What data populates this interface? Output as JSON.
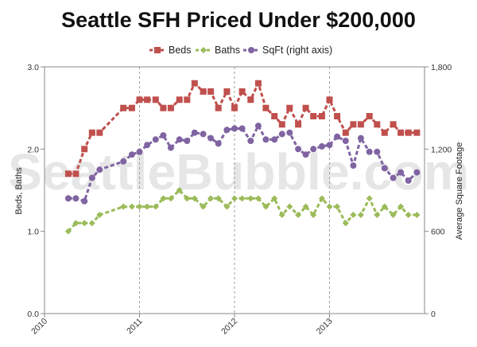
{
  "chart_data": {
    "type": "line",
    "title": "Seattle SFH Priced Under $200,000",
    "watermark": "SeattleBubble.com",
    "ylabel_left": "Beds, Baths",
    "ylabel_right": "Average Square Footage",
    "ylim_left": [
      0,
      3
    ],
    "ylim_right": [
      0,
      1800
    ],
    "yticks_left": [
      "0.0",
      "1.0",
      "2.0",
      "3.0"
    ],
    "yticks_right": [
      "0",
      "600",
      "1,200",
      "1,800"
    ],
    "xlim": [
      2010.0,
      2014.0
    ],
    "xticks": [
      {
        "value": 2010,
        "label": "2010"
      },
      {
        "value": 2011,
        "label": "2011"
      },
      {
        "value": 2012,
        "label": "2012"
      },
      {
        "value": 2013,
        "label": "2013"
      }
    ],
    "grid": "vertical dashed at year boundaries",
    "legend_position": "top",
    "dates": [
      2010.25,
      2010.33,
      2010.42,
      2010.5,
      2010.58,
      2010.83,
      2010.92,
      2011.0,
      2011.08,
      2011.17,
      2011.25,
      2011.33,
      2011.42,
      2011.5,
      2011.58,
      2011.67,
      2011.75,
      2011.83,
      2011.92,
      2012.0,
      2012.08,
      2012.17,
      2012.25,
      2012.33,
      2012.42,
      2012.5,
      2012.58,
      2012.67,
      2012.75,
      2012.83,
      2012.92,
      2013.0,
      2013.08,
      2013.17,
      2013.25,
      2013.33,
      2013.42,
      2013.5,
      2013.58,
      2013.67,
      2013.75,
      2013.83,
      2013.92
    ],
    "series": [
      {
        "name": "Beds",
        "axis": "left",
        "color": "#c0504d",
        "marker": "square",
        "values": [
          1.7,
          1.7,
          2.0,
          2.2,
          2.2,
          2.5,
          2.5,
          2.6,
          2.6,
          2.6,
          2.5,
          2.5,
          2.6,
          2.6,
          2.8,
          2.7,
          2.7,
          2.5,
          2.7,
          2.5,
          2.7,
          2.6,
          2.8,
          2.5,
          2.4,
          2.3,
          2.5,
          2.3,
          2.5,
          2.4,
          2.4,
          2.6,
          2.4,
          2.2,
          2.3,
          2.3,
          2.4,
          2.3,
          2.2,
          2.3,
          2.2,
          2.2,
          2.2
        ]
      },
      {
        "name": "Baths",
        "axis": "left",
        "color": "#9bbb59",
        "marker": "diamond",
        "values": [
          1.0,
          1.1,
          1.1,
          1.1,
          1.2,
          1.3,
          1.3,
          1.3,
          1.3,
          1.3,
          1.4,
          1.4,
          1.5,
          1.4,
          1.4,
          1.3,
          1.4,
          1.4,
          1.3,
          1.4,
          1.4,
          1.4,
          1.4,
          1.3,
          1.4,
          1.2,
          1.3,
          1.2,
          1.3,
          1.2,
          1.4,
          1.3,
          1.3,
          1.1,
          1.2,
          1.2,
          1.4,
          1.2,
          1.3,
          1.2,
          1.3,
          1.2,
          1.2
        ]
      },
      {
        "name": "SqFt (right axis)",
        "axis": "right",
        "color": "#8064a2",
        "marker": "circle",
        "values": [
          840,
          840,
          820,
          990,
          1050,
          1110,
          1160,
          1180,
          1230,
          1270,
          1300,
          1210,
          1270,
          1260,
          1320,
          1310,
          1280,
          1240,
          1340,
          1350,
          1350,
          1260,
          1370,
          1270,
          1270,
          1310,
          1320,
          1200,
          1160,
          1200,
          1220,
          1230,
          1290,
          1260,
          1080,
          1280,
          1180,
          1180,
          1060,
          990,
          1030,
          970,
          1030
        ]
      }
    ]
  }
}
